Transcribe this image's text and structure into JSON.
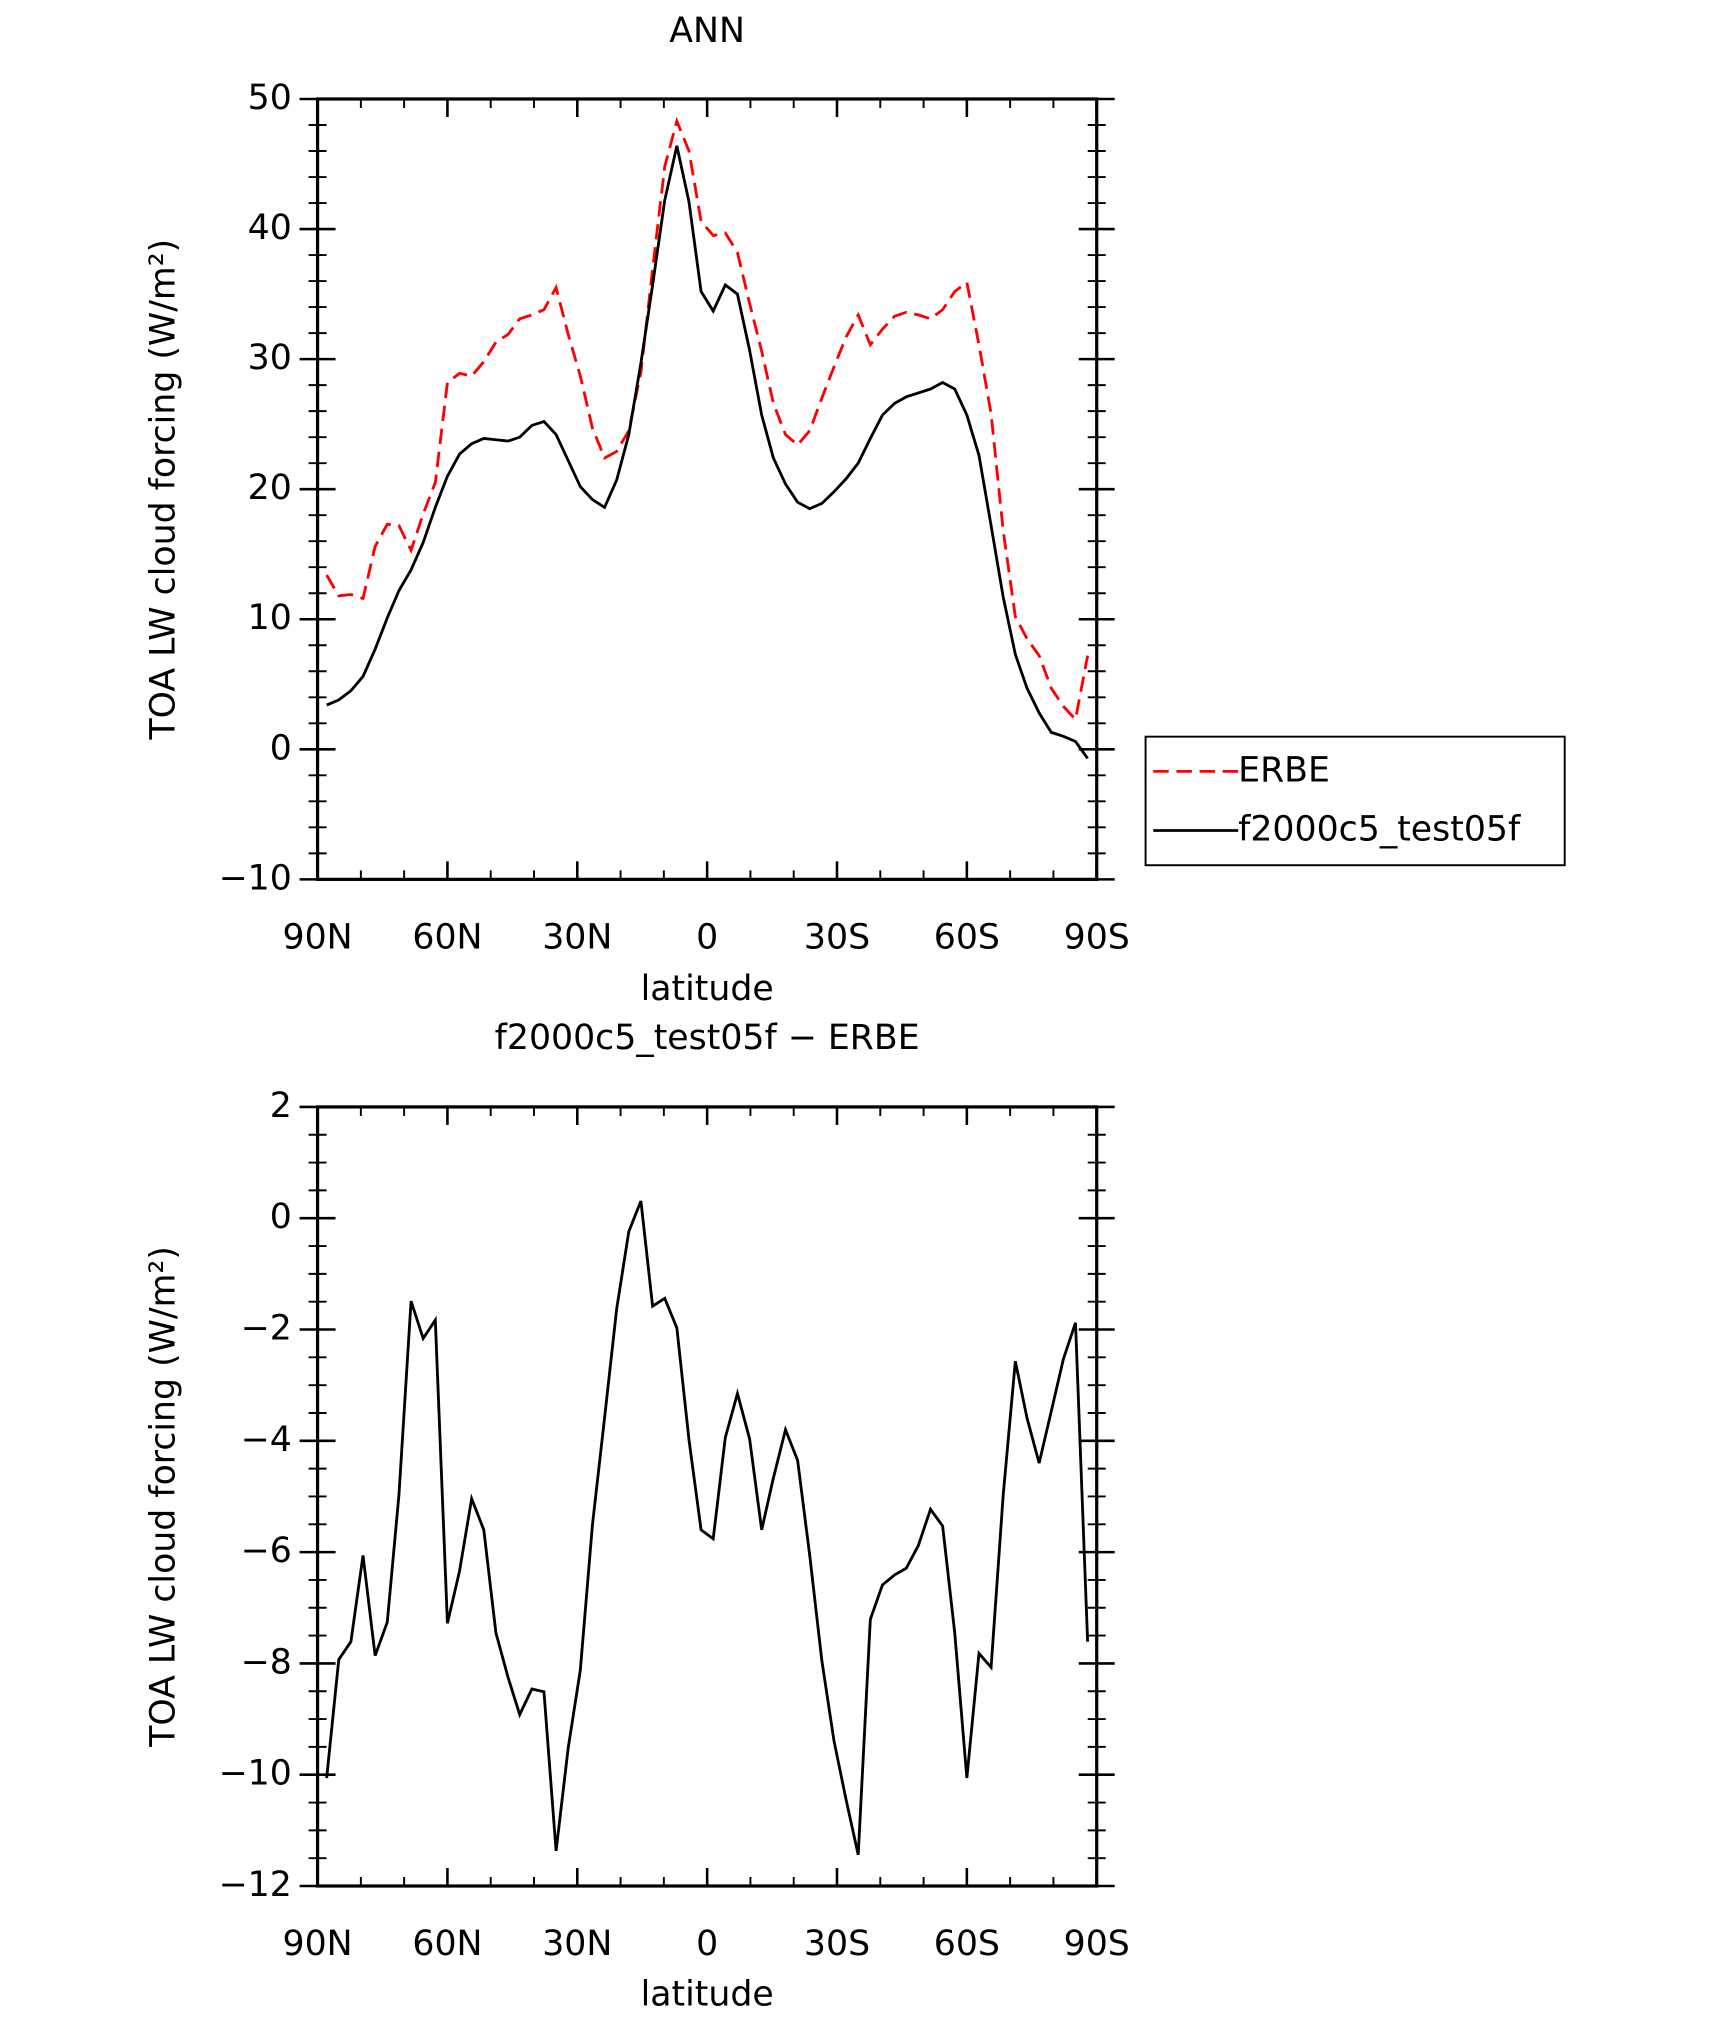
{
  "chart_data": [
    {
      "type": "line",
      "title": "ANN",
      "xlabel": "latitude",
      "ylabel": "TOA LW cloud forcing (W/m²)",
      "x": [
        87.9,
        85.1,
        82.3,
        79.5,
        76.7,
        73.9,
        71.2,
        68.4,
        65.6,
        62.8,
        60.0,
        57.2,
        54.4,
        51.6,
        48.8,
        46.0,
        43.3,
        40.5,
        37.7,
        34.9,
        32.1,
        29.3,
        26.5,
        23.7,
        20.9,
        18.1,
        15.3,
        12.6,
        9.8,
        7.0,
        4.2,
        1.4,
        -1.4,
        -4.2,
        -7.0,
        -9.8,
        -12.6,
        -15.3,
        -18.1,
        -20.9,
        -23.7,
        -26.5,
        -29.3,
        -32.1,
        -34.9,
        -37.7,
        -40.5,
        -43.3,
        -46.0,
        -48.8,
        -51.6,
        -54.4,
        -57.2,
        -60.0,
        -62.8,
        -65.6,
        -68.4,
        -71.2,
        -73.9,
        -76.7,
        -79.5,
        -82.3,
        -85.1,
        -87.9
      ],
      "series": [
        {
          "name": "ERBE",
          "color": "#ff0000",
          "dash": true,
          "values": [
            13.4,
            11.8,
            11.9,
            11.6,
            15.6,
            17.3,
            17.2,
            15.3,
            18.1,
            20.5,
            28.2,
            28.9,
            28.7,
            29.8,
            31.3,
            31.9,
            33.1,
            33.4,
            33.8,
            35.5,
            31.9,
            28.7,
            24.7,
            22.4,
            22.9,
            24.5,
            29.0,
            36.9,
            44.8,
            48.3,
            46.0,
            40.6,
            39.5,
            39.7,
            38.2,
            34.3,
            30.6,
            26.6,
            24.2,
            23.4,
            24.5,
            27.0,
            29.4,
            31.7,
            33.4,
            31.1,
            32.3,
            33.3,
            33.6,
            33.4,
            33.1,
            33.8,
            35.2,
            35.9,
            31.1,
            25.8,
            16.8,
            10.2,
            8.5,
            7.2,
            4.7,
            3.3,
            2.3,
            7.2
          ]
        },
        {
          "name": "f2000c5_test05f",
          "color": "#000000",
          "dash": false,
          "values": [
            3.4,
            3.8,
            4.5,
            5.6,
            7.7,
            10.1,
            12.2,
            13.8,
            15.9,
            18.6,
            21.0,
            22.7,
            23.5,
            23.9,
            23.8,
            23.7,
            24.0,
            24.9,
            25.2,
            24.2,
            22.2,
            20.2,
            19.2,
            18.6,
            20.7,
            24.2,
            29.7,
            35.7,
            42.2,
            46.4,
            42.1,
            35.2,
            33.7,
            35.7,
            35.0,
            30.7,
            25.7,
            22.4,
            20.4,
            19.0,
            18.5,
            18.9,
            19.8,
            20.8,
            22.0,
            23.9,
            25.7,
            26.6,
            27.1,
            27.4,
            27.7,
            28.2,
            27.7,
            25.7,
            22.6,
            17.2,
            11.7,
            7.3,
            4.7,
            2.8,
            1.3,
            1.0,
            0.6,
            -0.7
          ]
        }
      ],
      "xlim": [
        90,
        -90
      ],
      "xticks": [
        {
          "value": 90,
          "label": "90N"
        },
        {
          "value": 60,
          "label": "60N"
        },
        {
          "value": 30,
          "label": "30N"
        },
        0,
        {
          "value": -30,
          "label": "30S"
        },
        {
          "value": -60,
          "label": "60S"
        },
        {
          "value": -90,
          "label": "90S"
        }
      ],
      "ylim": [
        -10,
        50
      ],
      "yticks": [
        {
          "value": -10,
          "label": "−10"
        },
        0,
        10,
        20,
        30,
        40,
        50
      ],
      "legend": "right"
    },
    {
      "type": "line",
      "title": "f2000c5_test05f − ERBE",
      "xlabel": "latitude",
      "ylabel": "TOA LW cloud forcing (W/m²)",
      "x": [
        87.9,
        85.1,
        82.3,
        79.5,
        76.7,
        73.9,
        71.2,
        68.4,
        65.6,
        62.8,
        60.0,
        57.2,
        54.4,
        51.6,
        48.8,
        46.0,
        43.3,
        40.5,
        37.7,
        34.9,
        32.1,
        29.3,
        26.5,
        23.7,
        20.9,
        18.1,
        15.3,
        12.6,
        9.8,
        7.0,
        4.2,
        1.4,
        -1.4,
        -4.2,
        -7.0,
        -9.8,
        -12.6,
        -15.3,
        -18.1,
        -20.9,
        -23.7,
        -26.5,
        -29.3,
        -32.1,
        -34.9,
        -37.7,
        -40.5,
        -43.3,
        -46.0,
        -48.8,
        -51.6,
        -54.4,
        -57.2,
        -60.0,
        -62.8,
        -65.6,
        -68.4,
        -71.2,
        -73.9,
        -76.7,
        -79.5,
        -82.3,
        -85.1,
        -87.9
      ],
      "series": [
        {
          "color": "#000000",
          "dash": false,
          "values": [
            -10.06,
            -7.93,
            -7.61,
            -6.06,
            -7.86,
            -7.26,
            -4.97,
            -1.49,
            -2.16,
            -1.83,
            -7.28,
            -6.34,
            -5.04,
            -5.6,
            -7.45,
            -8.25,
            -8.92,
            -8.46,
            -8.51,
            -11.37,
            -9.52,
            -8.12,
            -5.51,
            -3.59,
            -1.63,
            -0.24,
            0.31,
            -1.58,
            -1.44,
            -1.97,
            -3.98,
            -5.6,
            -5.76,
            -3.94,
            -3.15,
            -3.96,
            -5.6,
            -4.67,
            -3.8,
            -4.35,
            -6.06,
            -7.95,
            -9.39,
            -10.45,
            -11.44,
            -7.21,
            -6.59,
            -6.41,
            -6.29,
            -5.88,
            -5.23,
            -5.53,
            -7.45,
            -10.06,
            -7.82,
            -8.07,
            -4.97,
            -2.57,
            -3.59,
            -4.4,
            -3.47,
            -2.53,
            -1.88,
            -7.61
          ]
        }
      ],
      "xlim": [
        90,
        -90
      ],
      "xticks": [
        {
          "value": 90,
          "label": "90N"
        },
        {
          "value": 60,
          "label": "60N"
        },
        {
          "value": 30,
          "label": "30N"
        },
        0,
        {
          "value": -30,
          "label": "30S"
        },
        {
          "value": -60,
          "label": "60S"
        },
        {
          "value": -90,
          "label": "90S"
        }
      ],
      "ylim": [
        -12,
        2
      ],
      "yticks": [
        {
          "value": -12,
          "label": "−12"
        },
        {
          "value": -10,
          "label": "−10"
        },
        {
          "value": -8,
          "label": "−8"
        },
        {
          "value": -6,
          "label": "−6"
        },
        {
          "value": -4,
          "label": "−4"
        },
        {
          "value": -2,
          "label": "−2"
        },
        0,
        2
      ]
    }
  ]
}
